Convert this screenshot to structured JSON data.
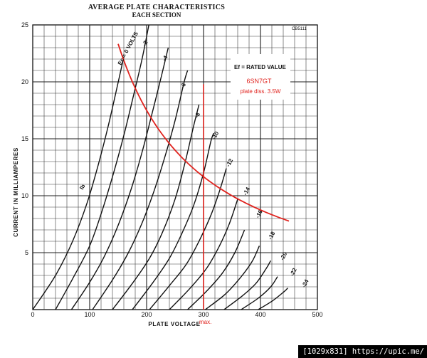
{
  "chart_data": {
    "type": "line",
    "title": "AVERAGE PLATE CHARACTERISTICS",
    "subtitle": "EACH SECTION",
    "xlabel": "PLATE VOLTAGE",
    "ylabel": "CURRENT IN MILLIAMPERES",
    "xlim": [
      0,
      500
    ],
    "ylim": [
      0,
      25
    ],
    "x_ticks": [
      "0",
      "100",
      "200",
      "300",
      "400",
      "500"
    ],
    "y_ticks": [
      "5",
      "10",
      "15",
      "20",
      "25"
    ],
    "figure_code": "CB5111",
    "family_label": "Ec = 0 VOLTS",
    "series": [
      {
        "name": "0",
        "points": [
          [
            0,
            0
          ],
          [
            40,
            3
          ],
          [
            70,
            6
          ],
          [
            95,
            9.3
          ],
          [
            115,
            12.7
          ],
          [
            132,
            16
          ],
          [
            148,
            19.5
          ],
          [
            160,
            22.2
          ]
        ]
      },
      {
        "name": "-2",
        "points": [
          [
            40,
            0
          ],
          [
            70,
            2.7
          ],
          [
            100,
            5.6
          ],
          [
            122,
            8.7
          ],
          [
            142,
            12
          ],
          [
            160,
            15.3
          ],
          [
            177,
            18.8
          ],
          [
            192,
            22
          ],
          [
            204,
            25
          ]
        ]
      },
      {
        "name": "-4",
        "points": [
          [
            68,
            0
          ],
          [
            100,
            2.4
          ],
          [
            125,
            4.6
          ],
          [
            150,
            7.4
          ],
          [
            173,
            10.6
          ],
          [
            193,
            14
          ],
          [
            210,
            17.3
          ],
          [
            226,
            20.5
          ],
          [
            238,
            23
          ]
        ]
      },
      {
        "name": "-6",
        "points": [
          [
            105,
            0
          ],
          [
            140,
            2.6
          ],
          [
            168,
            5
          ],
          [
            192,
            7.6
          ],
          [
            215,
            10.7
          ],
          [
            235,
            13.9
          ],
          [
            251,
            16.8
          ],
          [
            266,
            20
          ],
          [
            272,
            21
          ]
        ]
      },
      {
        "name": "-8",
        "points": [
          [
            140,
            0
          ],
          [
            175,
            2.3
          ],
          [
            205,
            4.5
          ],
          [
            228,
            6.8
          ],
          [
            250,
            9.7
          ],
          [
            267,
            12.8
          ],
          [
            282,
            16
          ],
          [
            292,
            18
          ]
        ]
      },
      {
        "name": "-10",
        "points": [
          [
            175,
            0
          ],
          [
            210,
            2.3
          ],
          [
            240,
            4.5
          ],
          [
            263,
            6.8
          ],
          [
            283,
            9.2
          ],
          [
            300,
            12
          ],
          [
            313,
            14.8
          ],
          [
            318,
            15.5
          ]
        ]
      },
      {
        "name": "-12",
        "points": [
          [
            205,
            0
          ],
          [
            240,
            2.1
          ],
          [
            270,
            4
          ],
          [
            293,
            6.1
          ],
          [
            313,
            8.3
          ],
          [
            328,
            10.4
          ],
          [
            340,
            12.4
          ]
        ]
      },
      {
        "name": "-14",
        "points": [
          [
            240,
            0
          ],
          [
            275,
            1.8
          ],
          [
            305,
            3.6
          ],
          [
            328,
            5.6
          ],
          [
            345,
            7.5
          ],
          [
            360,
            9.7
          ]
        ]
      },
      {
        "name": "-16",
        "points": [
          [
            272,
            0
          ],
          [
            305,
            1.6
          ],
          [
            333,
            3.2
          ],
          [
            355,
            5
          ],
          [
            372,
            7
          ]
        ]
      },
      {
        "name": "-18",
        "points": [
          [
            303,
            0
          ],
          [
            337,
            1.3
          ],
          [
            363,
            2.7
          ],
          [
            385,
            4.2
          ],
          [
            398,
            5.6
          ]
        ]
      },
      {
        "name": "-20",
        "points": [
          [
            336,
            0
          ],
          [
            368,
            1.2
          ],
          [
            392,
            2.3
          ],
          [
            410,
            3.6
          ],
          [
            418,
            4.3
          ]
        ]
      },
      {
        "name": "-22",
        "points": [
          [
            366,
            0
          ],
          [
            396,
            1
          ],
          [
            418,
            2
          ],
          [
            430,
            2.9
          ]
        ]
      },
      {
        "name": "-24",
        "points": [
          [
            396,
            0
          ],
          [
            422,
            0.8
          ],
          [
            442,
            1.6
          ],
          [
            448,
            1.9
          ]
        ]
      }
    ],
    "family_label_positions": [
      {
        "name": "-2",
        "x": 198,
        "y": 23.1
      },
      {
        "name": "-4",
        "x": 233,
        "y": 21.8
      },
      {
        "name": "-6",
        "x": 265,
        "y": 19.4
      },
      {
        "name": "-8",
        "x": 290,
        "y": 16.8
      },
      {
        "name": "-10",
        "x": 320,
        "y": 14.9
      },
      {
        "name": "-12",
        "x": 345,
        "y": 12.5
      },
      {
        "name": "-14",
        "x": 375,
        "y": 10.0
      },
      {
        "name": "-16",
        "x": 397,
        "y": 8.0
      },
      {
        "name": "-18",
        "x": 419,
        "y": 6.1
      },
      {
        "name": "-20",
        "x": 440,
        "y": 4.3
      },
      {
        "name": "-22",
        "x": 457,
        "y": 2.9
      },
      {
        "name": "-24",
        "x": 478,
        "y": 1.9
      }
    ],
    "ib_label": {
      "text": "Ib",
      "x": 88,
      "y": 10.5
    },
    "legend": {
      "text": "Ef = RATED VALUE",
      "position": "top-right"
    },
    "overlay": {
      "color": "#e0231e",
      "tube": "6SN7GT",
      "dissipation": "plate diss. 3.5W",
      "max_label": "max.",
      "max_voltage": 300,
      "max_line_ylim": [
        0,
        19.8
      ],
      "dissipation_curve_watts": 3.5,
      "dissipation_curve_xrange": [
        150,
        450
      ]
    }
  },
  "watermark": "[1029x831] https://upic.me/"
}
